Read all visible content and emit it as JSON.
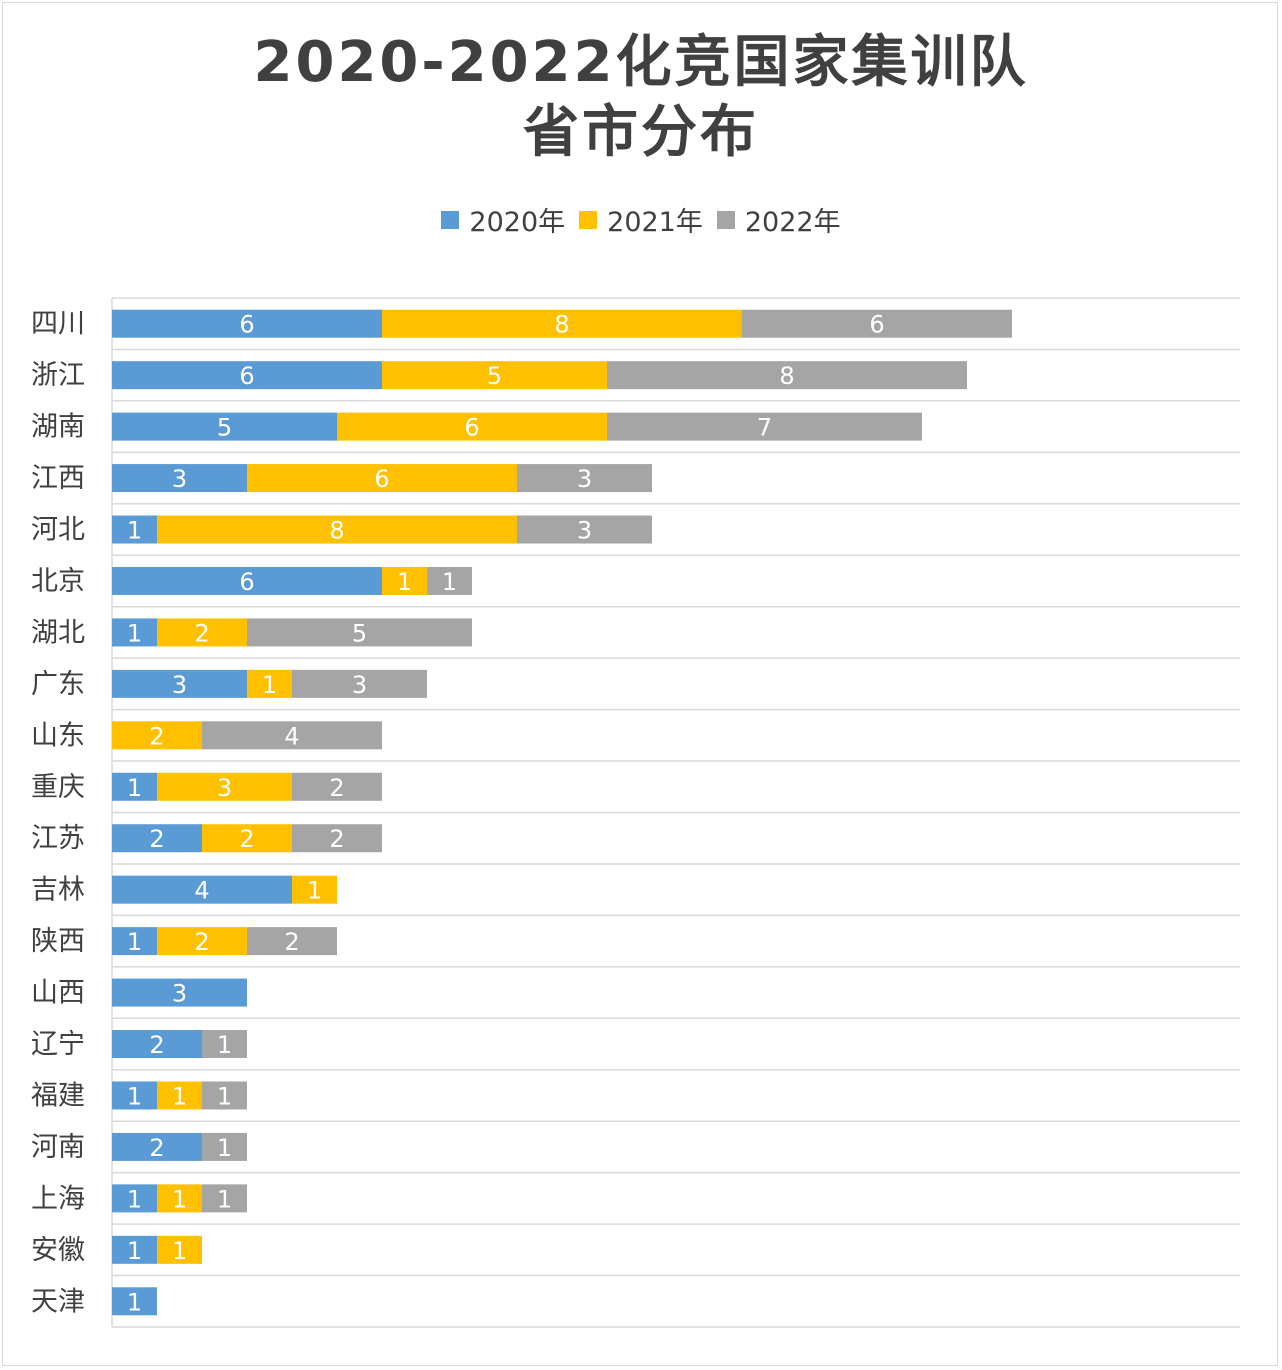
{
  "chart_data": {
    "type": "bar",
    "orientation": "horizontal",
    "stacked": true,
    "title": "2020-2022化竞国家集训队",
    "subtitle": "省市分布",
    "legend_position": "top",
    "xlim": [
      0,
      20
    ],
    "categories": [
      "四川",
      "浙江",
      "湖南",
      "江西",
      "河北",
      "北京",
      "湖北",
      "广东",
      "山东",
      "重庆",
      "江苏",
      "吉林",
      "陕西",
      "山西",
      "辽宁",
      "福建",
      "河南",
      "上海",
      "安徽",
      "天津"
    ],
    "series": [
      {
        "name": "2020年",
        "color": "#5b9bd5",
        "values": [
          6,
          6,
          5,
          3,
          1,
          6,
          1,
          3,
          0,
          1,
          2,
          4,
          1,
          3,
          2,
          1,
          2,
          1,
          1,
          1
        ]
      },
      {
        "name": "2021年",
        "color": "#ffc000",
        "values": [
          8,
          5,
          6,
          6,
          8,
          1,
          2,
          1,
          2,
          3,
          2,
          1,
          2,
          0,
          0,
          1,
          0,
          1,
          1,
          0
        ]
      },
      {
        "name": "2022年",
        "color": "#a5a5a5",
        "values": [
          6,
          8,
          7,
          3,
          3,
          1,
          5,
          3,
          4,
          2,
          2,
          0,
          2,
          0,
          1,
          1,
          1,
          1,
          0,
          0
        ]
      }
    ]
  }
}
